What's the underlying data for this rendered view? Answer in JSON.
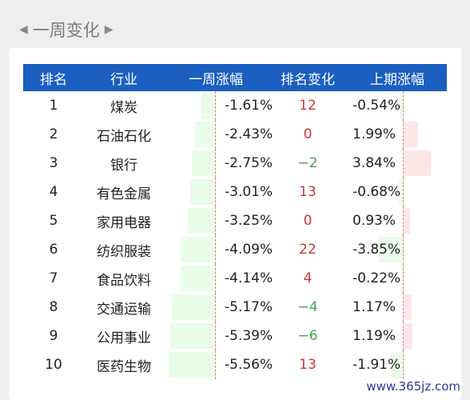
{
  "section": {
    "title": "一周变化"
  },
  "table": {
    "headers": [
      "排名",
      "行业",
      "一周涨幅",
      "排名变化",
      "上期涨幅"
    ],
    "rows": [
      {
        "rank": "1",
        "industry": "煤炭",
        "week": "-1.61%",
        "week_value": -1.61,
        "change": "12",
        "change_dir": "up",
        "prev": "-0.54%",
        "prev_value": -0.54
      },
      {
        "rank": "2",
        "industry": "石油石化",
        "week": "-2.43%",
        "week_value": -2.43,
        "change": "0",
        "change_dir": "flat",
        "prev": "1.99%",
        "prev_value": 1.99
      },
      {
        "rank": "3",
        "industry": "银行",
        "week": "-2.75%",
        "week_value": -2.75,
        "change": "−2",
        "change_dir": "down",
        "prev": "3.84%",
        "prev_value": 3.84
      },
      {
        "rank": "4",
        "industry": "有色金属",
        "week": "-3.01%",
        "week_value": -3.01,
        "change": "13",
        "change_dir": "up",
        "prev": "-0.68%",
        "prev_value": -0.68
      },
      {
        "rank": "5",
        "industry": "家用电器",
        "week": "-3.25%",
        "week_value": -3.25,
        "change": "0",
        "change_dir": "flat",
        "prev": "0.93%",
        "prev_value": 0.93
      },
      {
        "rank": "6",
        "industry": "纺织服装",
        "week": "-4.09%",
        "week_value": -4.09,
        "change": "22",
        "change_dir": "up",
        "prev": "-3.85%",
        "prev_value": -3.85
      },
      {
        "rank": "7",
        "industry": "食品饮料",
        "week": "-4.14%",
        "week_value": -4.14,
        "change": "4",
        "change_dir": "up",
        "prev": "-0.22%",
        "prev_value": -0.22
      },
      {
        "rank": "8",
        "industry": "交通运输",
        "week": "-5.17%",
        "week_value": -5.17,
        "change": "−4",
        "change_dir": "down",
        "prev": "1.17%",
        "prev_value": 1.17
      },
      {
        "rank": "9",
        "industry": "公用事业",
        "week": "-5.39%",
        "week_value": -5.39,
        "change": "−6",
        "change_dir": "down",
        "prev": "1.19%",
        "prev_value": 1.19
      },
      {
        "rank": "10",
        "industry": "医药生物",
        "week": "-5.56%",
        "week_value": -5.56,
        "change": "13",
        "change_dir": "up",
        "prev": "-1.91%",
        "prev_value": -1.91
      }
    ]
  },
  "colors": {
    "header_bg": "#1b5fc1",
    "up": "#d0343a",
    "down": "#4aa44a",
    "neg_bar": "#e9fbe9",
    "pos_bar": "#fde6e6"
  },
  "watermark": "www.365jz.com"
}
